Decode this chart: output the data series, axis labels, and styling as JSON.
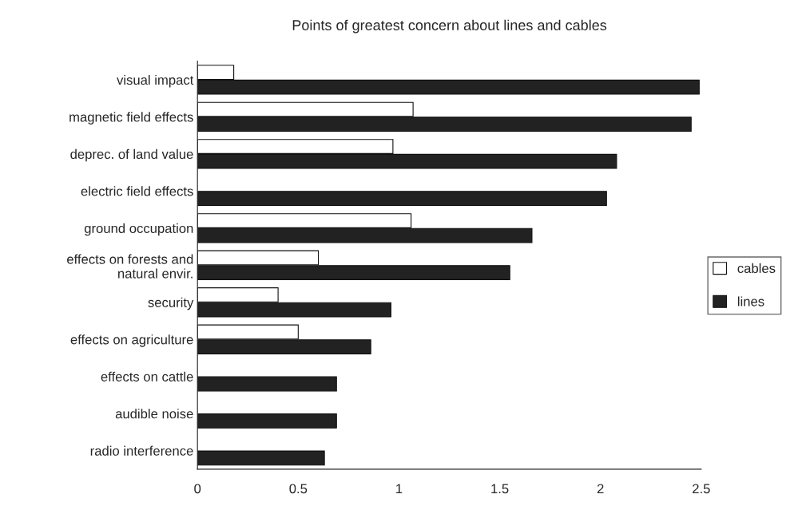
{
  "chart_data": {
    "type": "bar",
    "orientation": "horizontal",
    "title": "Points of greatest concern about lines and cables",
    "categories": [
      "visual impact",
      "magnetic field effects",
      "deprec. of land value",
      "electric field effects",
      "ground occupation",
      "effects on forests and\nnatural envir.",
      "security",
      "effects on agriculture",
      "effects on cattle",
      "audible noise",
      "radio interference"
    ],
    "series": [
      {
        "name": "cables",
        "color": "#ffffff",
        "values": [
          0.18,
          1.07,
          0.97,
          null,
          1.06,
          0.6,
          0.4,
          0.5,
          null,
          null,
          null
        ]
      },
      {
        "name": "lines",
        "color": "#222222",
        "values": [
          2.49,
          2.45,
          2.08,
          2.03,
          1.66,
          1.55,
          0.96,
          0.86,
          0.69,
          0.69,
          0.63
        ]
      }
    ],
    "xlim": [
      0,
      2.5
    ],
    "xticks": [
      0,
      0.5,
      1,
      1.5,
      2,
      2.5
    ],
    "grid": false,
    "legend": "right"
  }
}
